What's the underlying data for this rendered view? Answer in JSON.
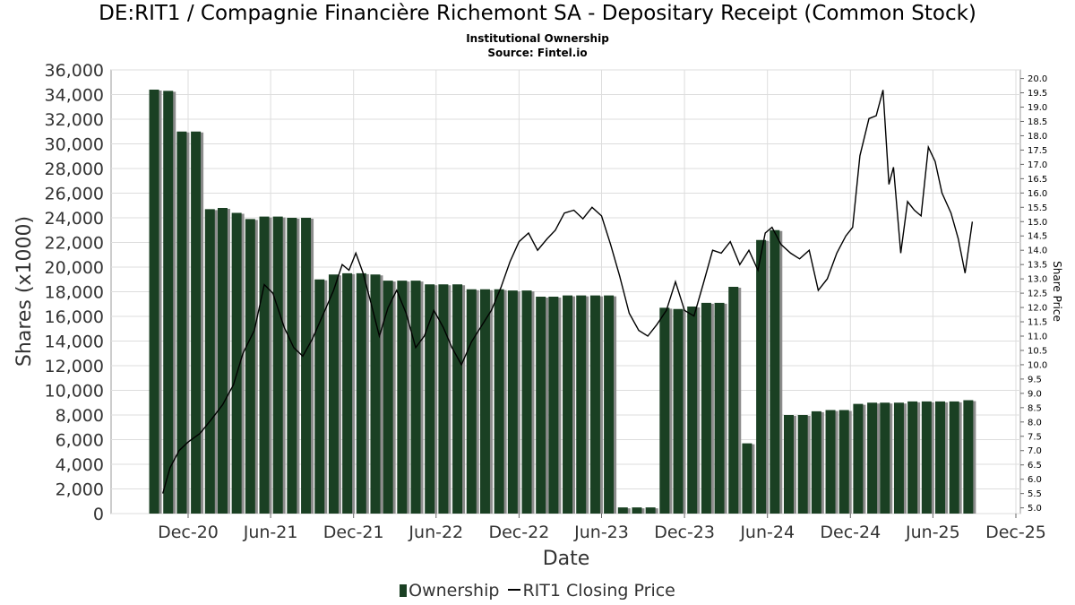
{
  "header": {
    "title": "DE:RIT1 / Compagnie Financière Richemont SA - Depositary Receipt (Common Stock)",
    "subtitle": "Institutional Ownership",
    "source": "Source: Fintel.io"
  },
  "legend": {
    "ownership_label": "Ownership",
    "price_label": "RIT1 Closing Price"
  },
  "colors": {
    "bar": "#1a4023",
    "bar_shadow": "#8c8c8c",
    "price_line": "#000000",
    "grid": "#dddddd"
  },
  "chart_data": {
    "type": "bar",
    "xlabel": "Date",
    "ylabel": "Shares (x1000)",
    "y2label": "Share Price",
    "ylim": [
      0,
      36000
    ],
    "y2lim": [
      4.8,
      20.3
    ],
    "yticks": [
      "0",
      "2,000",
      "4,000",
      "6,000",
      "8,000",
      "10,000",
      "12,000",
      "14,000",
      "16,000",
      "18,000",
      "20,000",
      "22,000",
      "24,000",
      "26,000",
      "28,000",
      "30,000",
      "32,000",
      "34,000",
      "36,000"
    ],
    "y2ticks": [
      "5.0",
      "5.5",
      "6.0",
      "6.5",
      "7.0",
      "7.5",
      "8.0",
      "8.5",
      "9.0",
      "9.5",
      "10.0",
      "10.5",
      "11.0",
      "11.5",
      "12.0",
      "12.5",
      "13.0",
      "13.5",
      "14.0",
      "14.5",
      "15.0",
      "15.5",
      "16.0",
      "16.5",
      "17.0",
      "17.5",
      "18.0",
      "18.5",
      "19.0",
      "19.5",
      "20.0"
    ],
    "xticks": [
      "Dec-20",
      "Jun-21",
      "Dec-21",
      "Jun-22",
      "Dec-22",
      "Jun-23",
      "Dec-23",
      "Jun-24",
      "Dec-24",
      "Jun-25",
      "Dec-25"
    ],
    "grid": true,
    "legend_position": "bottom",
    "series": [
      {
        "name": "Ownership",
        "type": "bar",
        "x": [
          "2020-10-01",
          "2020-11-01",
          "2020-12-01",
          "2021-01-01",
          "2021-02-01",
          "2021-03-01",
          "2021-04-01",
          "2021-05-01",
          "2021-06-01",
          "2021-07-01",
          "2021-08-01",
          "2021-09-01",
          "2021-10-01",
          "2021-11-01",
          "2021-12-01",
          "2022-01-01",
          "2022-02-01",
          "2022-03-01",
          "2022-04-01",
          "2022-05-01",
          "2022-06-01",
          "2022-07-01",
          "2022-08-01",
          "2022-09-01",
          "2022-10-01",
          "2022-11-01",
          "2022-12-01",
          "2023-01-01",
          "2023-02-01",
          "2023-03-01",
          "2023-04-01",
          "2023-05-01",
          "2023-06-01",
          "2023-07-01",
          "2023-08-01",
          "2023-09-01",
          "2023-10-01",
          "2023-11-01",
          "2023-12-01",
          "2024-01-01",
          "2024-02-01",
          "2024-03-01",
          "2024-04-01",
          "2024-05-01",
          "2024-06-01",
          "2024-07-01",
          "2024-08-01",
          "2024-09-01",
          "2024-10-01",
          "2024-11-01",
          "2024-12-01",
          "2025-01-01",
          "2025-02-01",
          "2025-03-01",
          "2025-04-01",
          "2025-05-01",
          "2025-06-01",
          "2025-07-01",
          "2025-08-01",
          "2025-09-01"
        ],
        "values": [
          34400,
          34300,
          31000,
          31000,
          24700,
          24800,
          24400,
          23900,
          24100,
          24100,
          24000,
          24000,
          19000,
          19400,
          19500,
          19500,
          19400,
          18900,
          18900,
          18900,
          18600,
          18600,
          18600,
          18200,
          18200,
          18200,
          18100,
          18100,
          17600,
          17600,
          17700,
          17700,
          17700,
          17700,
          500,
          500,
          500,
          16700,
          16600,
          16800,
          17100,
          17100,
          18400,
          5700,
          22200,
          23000,
          8000,
          8000,
          8300,
          8400,
          8400,
          8900,
          9000,
          9000,
          9000,
          9100,
          9100,
          9100,
          9100,
          9200
        ]
      },
      {
        "name": "RIT1 Closing Price",
        "type": "line",
        "x": [
          "2020-10-20",
          "2020-11-05",
          "2020-11-25",
          "2020-12-15",
          "2021-01-10",
          "2021-02-05",
          "2021-03-01",
          "2021-03-25",
          "2021-04-15",
          "2021-05-10",
          "2021-06-01",
          "2021-06-20",
          "2021-07-15",
          "2021-08-05",
          "2021-08-25",
          "2021-09-15",
          "2021-10-10",
          "2021-11-01",
          "2021-11-20",
          "2021-12-05",
          "2021-12-20",
          "2022-01-05",
          "2022-01-20",
          "2022-02-10",
          "2022-03-01",
          "2022-03-20",
          "2022-04-10",
          "2022-05-01",
          "2022-05-20",
          "2022-06-10",
          "2022-07-01",
          "2022-07-20",
          "2022-08-10",
          "2022-09-01",
          "2022-09-25",
          "2022-10-15",
          "2022-11-05",
          "2022-11-25",
          "2022-12-15",
          "2023-01-05",
          "2023-01-25",
          "2023-02-15",
          "2023-03-05",
          "2023-03-25",
          "2023-04-15",
          "2023-05-05",
          "2023-05-25",
          "2023-06-15",
          "2023-07-05",
          "2023-07-25",
          "2023-08-15",
          "2023-09-05",
          "2023-09-25",
          "2023-10-15",
          "2023-11-05",
          "2023-11-25",
          "2023-12-15",
          "2024-01-05",
          "2024-01-25",
          "2024-02-15",
          "2024-03-05",
          "2024-03-25",
          "2024-04-15",
          "2024-05-05",
          "2024-05-25",
          "2024-06-10",
          "2024-06-25",
          "2024-07-15",
          "2024-08-05",
          "2024-08-25",
          "2024-09-15",
          "2024-10-05",
          "2024-10-25",
          "2024-11-15",
          "2024-12-05",
          "2024-12-20",
          "2025-01-05",
          "2025-01-25",
          "2025-02-10",
          "2025-02-25",
          "2025-03-10",
          "2025-03-20",
          "2025-04-05",
          "2025-04-20",
          "2025-05-05",
          "2025-05-20",
          "2025-06-05",
          "2025-06-20",
          "2025-07-05",
          "2025-07-25",
          "2025-08-10",
          "2025-08-25",
          "2025-09-10"
        ],
        "values": [
          5.5,
          6.4,
          7.0,
          7.3,
          7.6,
          8.1,
          8.6,
          9.3,
          10.4,
          11.2,
          12.8,
          12.5,
          11.3,
          10.6,
          10.3,
          10.9,
          11.8,
          12.6,
          13.5,
          13.3,
          13.9,
          13.2,
          12.3,
          11.0,
          12.0,
          12.6,
          11.8,
          10.6,
          11.0,
          11.9,
          11.3,
          10.6,
          10.0,
          10.8,
          11.4,
          11.9,
          12.7,
          13.6,
          14.3,
          14.6,
          14.0,
          14.4,
          14.7,
          15.3,
          15.4,
          15.1,
          15.5,
          15.2,
          14.2,
          13.1,
          11.8,
          11.2,
          11.0,
          11.4,
          11.9,
          12.9,
          11.9,
          11.7,
          12.8,
          14.0,
          13.9,
          14.3,
          13.5,
          14.0,
          13.3,
          14.6,
          14.8,
          14.2,
          13.9,
          13.7,
          14.0,
          12.6,
          13.0,
          13.9,
          14.5,
          14.8,
          17.3,
          18.6,
          18.7,
          19.6,
          16.3,
          16.9,
          13.9,
          15.7,
          15.4,
          15.2,
          17.6,
          17.1,
          16.0,
          15.3,
          14.4,
          13.2,
          15.0
        ]
      }
    ]
  }
}
